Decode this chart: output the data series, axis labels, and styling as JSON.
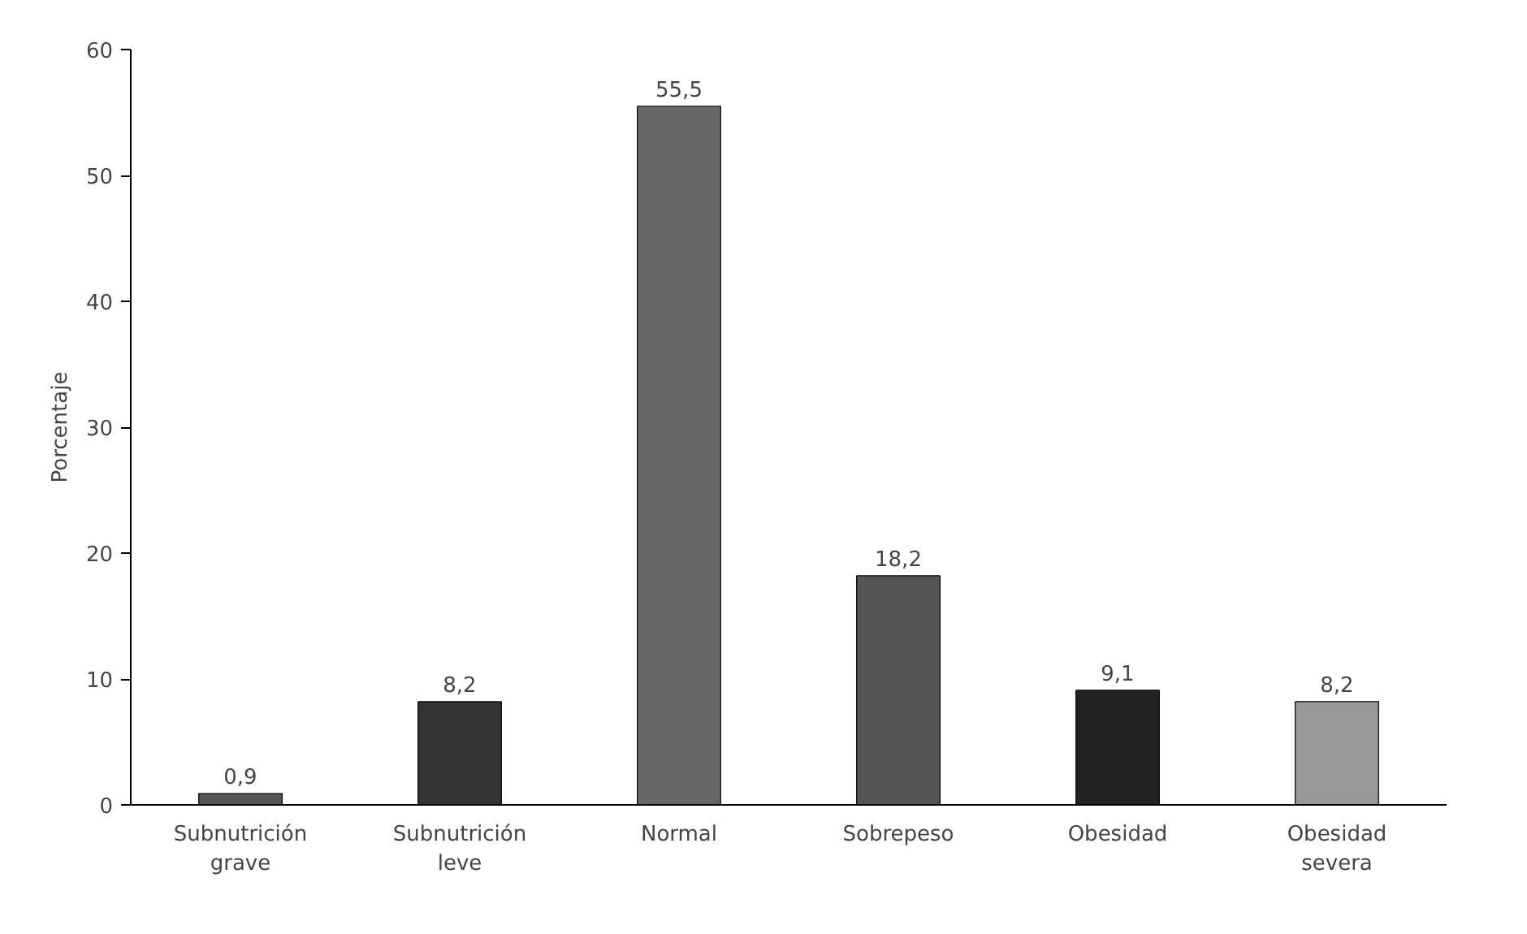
{
  "chart_data": {
    "type": "bar",
    "ylabel": "Porcentaje",
    "categories": [
      "Subnutrición\ngrave",
      "Subnutrición\nleve",
      "Normal",
      "Sobrepeso",
      "Obesidad",
      "Obesidad\nsevera"
    ],
    "values": [
      0.9,
      8.2,
      55.5,
      18.2,
      9.1,
      8.2
    ],
    "value_labels": [
      "0,9",
      "8,2",
      "55,5",
      "18,2",
      "9,1",
      "8,2"
    ],
    "colors": [
      "#555555",
      "#333333",
      "#666666",
      "#555555",
      "#222222",
      "#999999"
    ],
    "ylim": [
      0,
      60
    ],
    "yticks": [
      0,
      10,
      20,
      30,
      40,
      50,
      60
    ],
    "grid": false
  }
}
